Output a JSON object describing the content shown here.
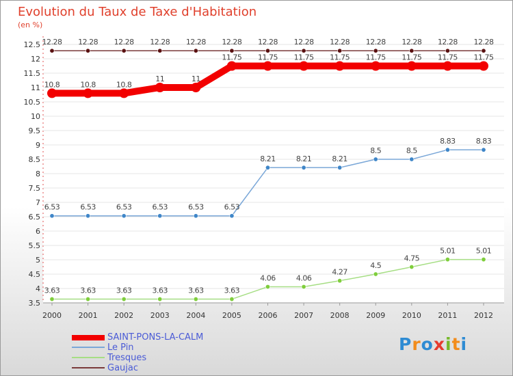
{
  "title": "Evolution du Taux de Taxe d'Habitation",
  "unit": "(en %)",
  "watermark": [
    "P",
    "r",
    "o",
    "x",
    "i",
    "t",
    "i"
  ],
  "watermark_colors": [
    "#2e8bd3",
    "#f28c1c",
    "#2e8bd3",
    "#e63b2e",
    "#76b82a",
    "#f28c1c",
    "#2e8bd3"
  ],
  "chart_data": {
    "type": "line",
    "categories": [
      "2000",
      "2001",
      "2002",
      "2003",
      "2004",
      "2005",
      "2006",
      "2007",
      "2008",
      "2009",
      "2010",
      "2011",
      "2012"
    ],
    "ylim": [
      3.5,
      12.5
    ],
    "yticks": [
      "3.5",
      "4",
      "4.5",
      "5",
      "5.5",
      "6",
      "6.5",
      "7",
      "7.5",
      "8",
      "8.5",
      "9",
      "9.5",
      "10",
      "10.5",
      "11",
      "11.5",
      "12",
      "12.5"
    ],
    "series": [
      {
        "name": "SAINT-PONS-LA-CALM",
        "color": "#f20000",
        "style": "thick",
        "values": [
          10.8,
          10.8,
          10.8,
          11,
          11,
          11.75,
          11.75,
          11.75,
          11.75,
          11.75,
          11.75,
          11.75,
          11.75
        ],
        "labels": [
          "10.8",
          "10.8",
          "10.8",
          "11",
          "11",
          "11.75",
          "11.75",
          "11.75",
          "11.75",
          "11.75",
          "11.75",
          "11.75",
          "11.75"
        ]
      },
      {
        "name": "Le Pin",
        "color": "#7aa7d8",
        "marker": "#3f86c8",
        "style": "thin",
        "values": [
          6.53,
          6.53,
          6.53,
          6.53,
          6.53,
          6.53,
          8.21,
          8.21,
          8.21,
          8.5,
          8.5,
          8.83,
          8.83
        ],
        "labels": [
          "6.53",
          "6.53",
          "6.53",
          "6.53",
          "6.53",
          "6.53",
          "8.21",
          "8.21",
          "8.21",
          "8.5",
          "8.5",
          "8.83",
          "8.83"
        ]
      },
      {
        "name": "Tresques",
        "color": "#a6de84",
        "marker": "#7fce3c",
        "style": "thin",
        "values": [
          3.63,
          3.63,
          3.63,
          3.63,
          3.63,
          3.63,
          4.06,
          4.06,
          4.27,
          4.5,
          4.75,
          5.01,
          5.01
        ],
        "labels": [
          "3.63",
          "3.63",
          "3.63",
          "3.63",
          "3.63",
          "3.63",
          "4.06",
          "4.06",
          "4.27",
          "4.5",
          "4.75",
          "5.01",
          "5.01"
        ]
      },
      {
        "name": "Gaujac",
        "color": "#7a3a3a",
        "marker": "#5a1212",
        "style": "thin",
        "values": [
          12.28,
          12.28,
          12.28,
          12.28,
          12.28,
          12.28,
          12.28,
          12.28,
          12.28,
          12.28,
          12.28,
          12.28,
          12.28
        ],
        "labels": [
          "12.28",
          "12.28",
          "12.28",
          "12.28",
          "12.28",
          "12.28",
          "12.28",
          "12.28",
          "12.28",
          "12.28",
          "12.28",
          "12.28",
          "12.28"
        ]
      }
    ]
  }
}
